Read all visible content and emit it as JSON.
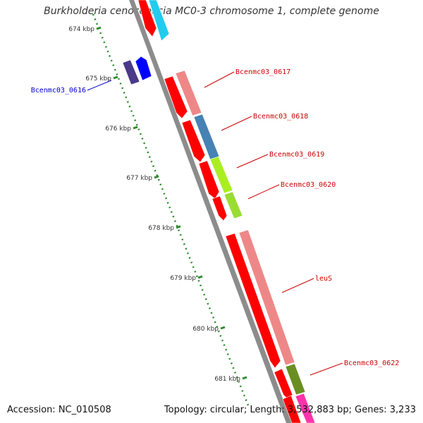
{
  "title": "Burkholderia cenocepacia MC0-3 chromosome 1, complete genome",
  "accession": "Accession: NC_010508",
  "stats": "Topology: circular; Length: 3,532,883 bp; Genes: 3,233",
  "scale_ticks": [
    "674 kbp",
    "675 kbp",
    "676 kbp",
    "677 kbp",
    "678 kbp",
    "679 kbp",
    "680 kbp",
    "681 kbp"
  ],
  "colors": {
    "backbone": "#8c8c8c",
    "scale": "#2e8b2e",
    "label_plus": "#cc0000",
    "label_minus": "#0000cc"
  },
  "genes": [
    {
      "name": "",
      "label_color": "#cc0000",
      "track": "forward",
      "color": "#ff0000"
    },
    {
      "name": "",
      "label_color": "#cc0000",
      "track": "outer",
      "color": "#22ccee"
    },
    {
      "name": "Bcenmc03_0616",
      "label_color": "#0000cc",
      "track": "inner",
      "color": "#4a3a88"
    },
    {
      "name": "",
      "label_color": "#0000cc",
      "track": "inner2",
      "color": "#0000ff"
    },
    {
      "name": "Bcenmc03_0617",
      "label_color": "#cc0000",
      "track": "outer",
      "color": "#ee8888"
    },
    {
      "name": "Bcenmc03_0618",
      "label_color": "#cc0000",
      "track": "outer",
      "color": "#4682b4"
    },
    {
      "name": "Bcenmc03_0619",
      "label_color": "#cc0000",
      "track": "outer",
      "color": "#aaee22"
    },
    {
      "name": "Bcenmc03_0620",
      "label_color": "#cc0000",
      "track": "outer",
      "color": "#99dd33"
    },
    {
      "name": "leuS",
      "label_color": "#cc0000",
      "track": "outer",
      "color": "#ee8888"
    },
    {
      "name": "Bcenmc03_0622",
      "label_color": "#cc0000",
      "track": "outer",
      "color": "#6b8e23"
    },
    {
      "name": "",
      "label_color": "#cc0000",
      "track": "outer",
      "color": "#ff33aa"
    }
  ]
}
